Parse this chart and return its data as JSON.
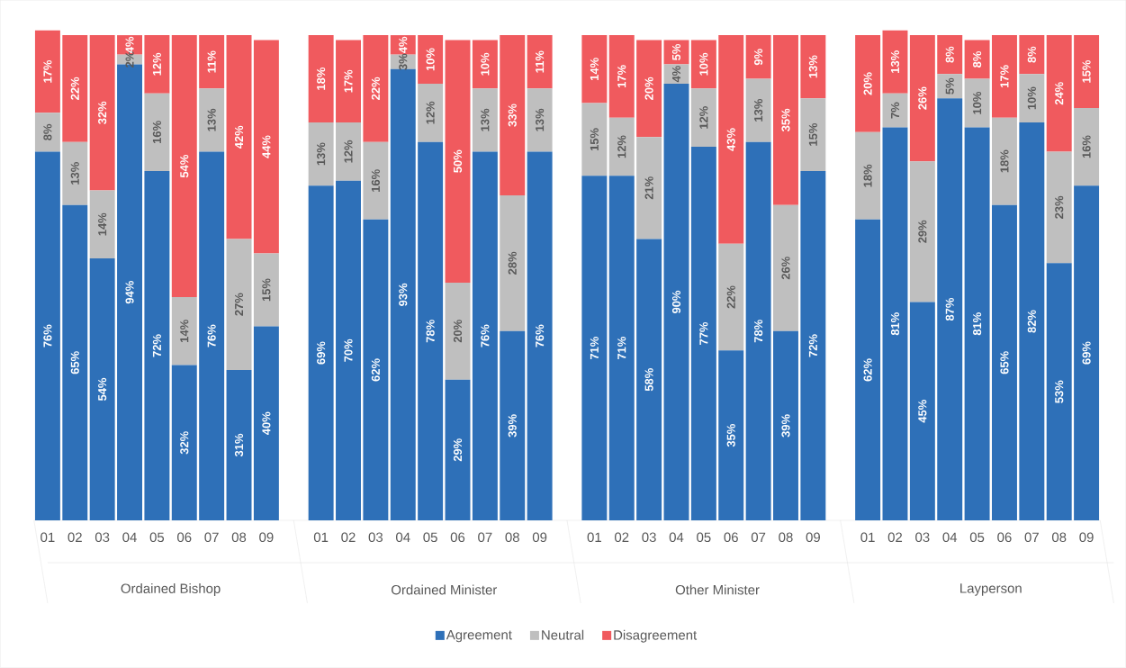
{
  "chart_data": {
    "type": "bar",
    "stacked": true,
    "legend": "bottom",
    "categories": [
      "01",
      "02",
      "03",
      "04",
      "05",
      "06",
      "07",
      "08",
      "09",
      "01",
      "02",
      "03",
      "04",
      "05",
      "06",
      "07",
      "08",
      "09",
      "01",
      "02",
      "03",
      "04",
      "05",
      "06",
      "07",
      "08",
      "09",
      "01",
      "02",
      "03",
      "04",
      "05",
      "06",
      "07",
      "08",
      "09"
    ],
    "annotations": [
      "Ordained Bishop",
      "Ordained Minister",
      "Other Minister",
      "Layperson"
    ],
    "series": [
      {
        "name": "Agreement",
        "color": "#2e70b8",
        "values": [
          76,
          65,
          54,
          94,
          72,
          32,
          76,
          31,
          40,
          69,
          70,
          62,
          93,
          78,
          29,
          76,
          39,
          76,
          71,
          71,
          58,
          90,
          77,
          35,
          78,
          39,
          72,
          62,
          81,
          45,
          87,
          81,
          65,
          82,
          53,
          69
        ],
        "value_labels": [
          "76%",
          "65%",
          "54%",
          "94%",
          "72%",
          "32%",
          "76%",
          "31%",
          "40%",
          "69%",
          "70%",
          "62%",
          "93%",
          "78%",
          "29%",
          "76%",
          "39%",
          "76%",
          "71%",
          "71%",
          "58%",
          "90%",
          "77%",
          "35%",
          "78%",
          "39%",
          "72%",
          "62%",
          "81%",
          "45%",
          "87%",
          "81%",
          "65%",
          "82%",
          "53%",
          "69%"
        ]
      },
      {
        "name": "Neutral",
        "color": "#bfbfbf",
        "values": [
          8,
          13,
          14,
          2,
          16,
          14,
          13,
          27,
          15,
          13,
          12,
          16,
          3,
          12,
          20,
          13,
          28,
          13,
          15,
          12,
          21,
          4,
          12,
          22,
          13,
          26,
          15,
          18,
          7,
          29,
          5,
          10,
          18,
          10,
          23,
          16
        ],
        "value_labels": [
          "8%",
          "13%",
          "14%",
          "2%",
          "16%",
          "14%",
          "13%",
          "27%",
          "15%",
          "13%",
          "12%",
          "16%",
          "3%",
          "12%",
          "20%",
          "13%",
          "28%",
          "13%",
          "15%",
          "12%",
          "21%",
          "4%",
          "12%",
          "22%",
          "13%",
          "26%",
          "15%",
          "18%",
          "7%",
          "29%",
          "5%",
          "10%",
          "18%",
          "10%",
          "23%",
          "16%"
        ]
      },
      {
        "name": "Disagreement",
        "color": "#f05a5e",
        "values": [
          17,
          22,
          32,
          4,
          12,
          54,
          11,
          42,
          44,
          18,
          17,
          22,
          4,
          10,
          50,
          10,
          33,
          11,
          14,
          17,
          20,
          5,
          10,
          43,
          9,
          35,
          13,
          20,
          13,
          26,
          8,
          8,
          17,
          8,
          24,
          15
        ],
        "value_labels": [
          "17%",
          "22%",
          "32%",
          "4%",
          "12%",
          "54%",
          "11%",
          "42%",
          "44%",
          "18%",
          "17%",
          "22%",
          "4%",
          "10%",
          "50%",
          "10%",
          "33%",
          "11%",
          "14%",
          "17%",
          "20%",
          "5%",
          "10%",
          "43%",
          "9%",
          "35%",
          "13%",
          "20%",
          "13%",
          "26%",
          "8%",
          "8%",
          "17%",
          "8%",
          "24%",
          "15%"
        ]
      }
    ]
  }
}
